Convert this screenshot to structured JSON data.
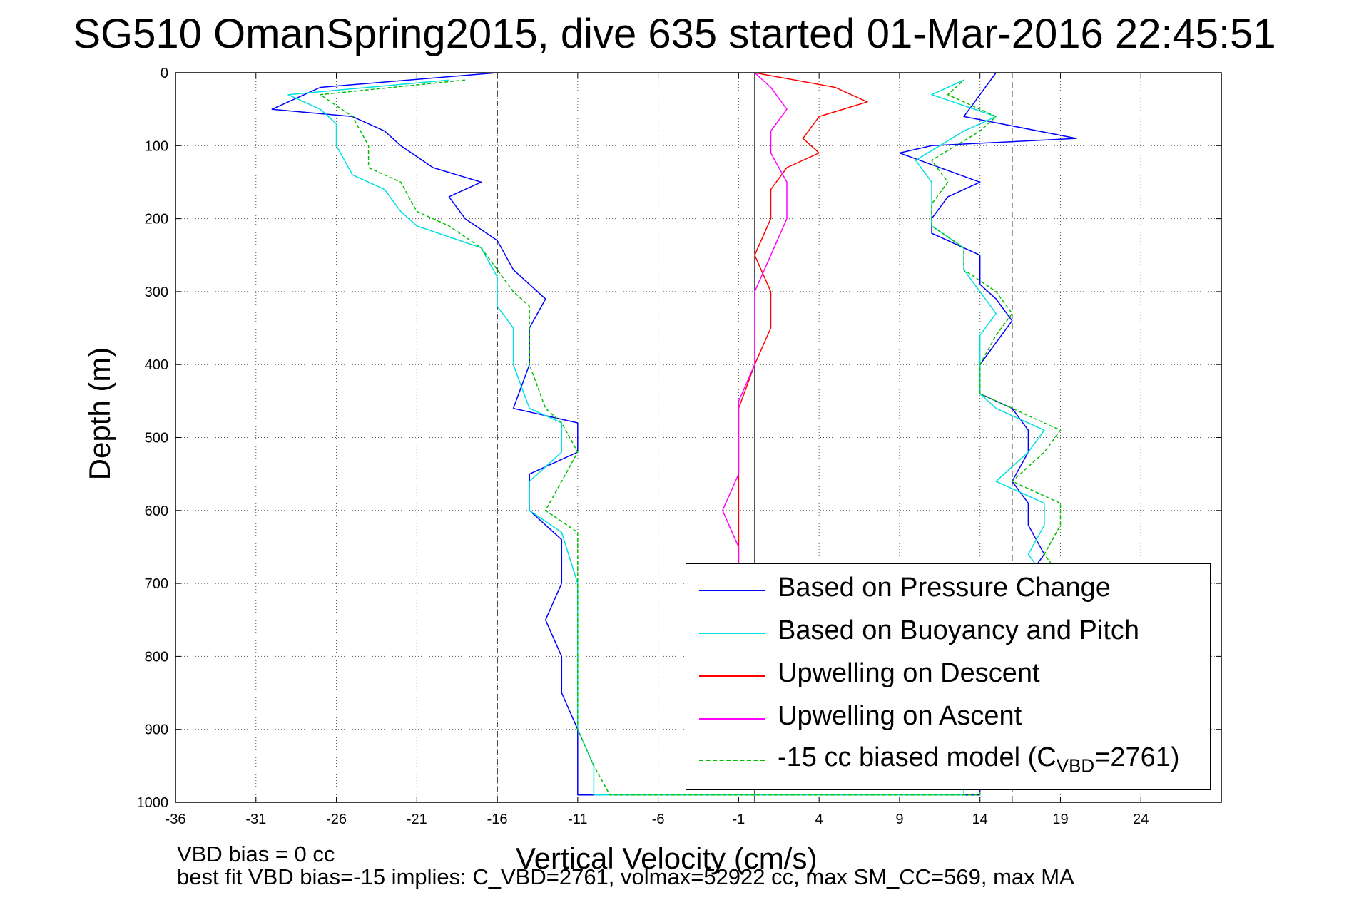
{
  "chart_data": {
    "type": "line",
    "title": "SG510 OmanSpring2015, dive 635 started 01-Mar-2016 22:45:51",
    "xlabel": "Vertical Velocity (cm/s)",
    "ylabel": "Depth (m)",
    "xlim": [
      -36,
      29
    ],
    "ylim": [
      1000,
      0
    ],
    "y_inverted": true,
    "grid": true,
    "x_ticks": [
      "-36",
      "-31",
      "-26",
      "-21",
      "-16",
      "-11",
      "-6",
      "-1",
      "4",
      "9",
      "14",
      "19",
      "24"
    ],
    "y_ticks": [
      "0",
      "100",
      "200",
      "300",
      "400",
      "500",
      "600",
      "700",
      "800",
      "900",
      "1000"
    ],
    "reference_lines": {
      "solid": [
        0
      ],
      "dashed": [
        -16,
        16
      ]
    },
    "legend_position": "bottom-right",
    "series": [
      {
        "name": "Based on Pressure Change",
        "color": "#0000ff",
        "style": "solid",
        "points": [
          [
            -16,
            0
          ],
          [
            -27,
            20
          ],
          [
            -30,
            50
          ],
          [
            -25,
            60
          ],
          [
            -23,
            80
          ],
          [
            -22,
            100
          ],
          [
            -20,
            130
          ],
          [
            -17,
            150
          ],
          [
            -19,
            170
          ],
          [
            -18,
            200
          ],
          [
            -16,
            230
          ],
          [
            -15,
            270
          ],
          [
            -13,
            310
          ],
          [
            -14,
            350
          ],
          [
            -14,
            400
          ],
          [
            -15,
            460
          ],
          [
            -11,
            480
          ],
          [
            -11,
            520
          ],
          [
            -14,
            550
          ],
          [
            -14,
            600
          ],
          [
            -12,
            640
          ],
          [
            -12,
            700
          ],
          [
            -13,
            750
          ],
          [
            -12,
            800
          ],
          [
            -12,
            850
          ],
          [
            -11,
            900
          ],
          [
            -11,
            950
          ],
          [
            -11,
            990
          ],
          [
            14,
            990
          ],
          [
            14,
            950
          ],
          [
            14,
            900
          ],
          [
            14,
            860
          ],
          [
            14,
            820
          ],
          [
            14,
            790
          ],
          [
            16,
            760
          ],
          [
            17,
            720
          ],
          [
            17,
            690
          ],
          [
            18,
            660
          ],
          [
            17,
            620
          ],
          [
            17,
            590
          ],
          [
            16,
            560
          ],
          [
            17,
            520
          ],
          [
            17,
            490
          ],
          [
            16,
            460
          ],
          [
            14,
            440
          ],
          [
            14,
            400
          ],
          [
            15,
            370
          ],
          [
            16,
            340
          ],
          [
            15,
            310
          ],
          [
            14,
            290
          ],
          [
            14,
            250
          ],
          [
            11,
            220
          ],
          [
            11,
            200
          ],
          [
            12,
            170
          ],
          [
            14,
            150
          ],
          [
            9,
            110
          ],
          [
            11,
            100
          ],
          [
            20,
            90
          ],
          [
            13,
            60
          ],
          [
            14,
            30
          ],
          [
            15,
            0
          ]
        ]
      },
      {
        "name": "Based on Buoyancy and Pitch",
        "color": "#00e0e0",
        "style": "solid",
        "points": [
          [
            -19,
            10
          ],
          [
            -29,
            30
          ],
          [
            -27,
            50
          ],
          [
            -26,
            70
          ],
          [
            -26,
            100
          ],
          [
            -25,
            140
          ],
          [
            -23,
            160
          ],
          [
            -22,
            190
          ],
          [
            -21,
            210
          ],
          [
            -17,
            240
          ],
          [
            -16,
            280
          ],
          [
            -16,
            320
          ],
          [
            -15,
            350
          ],
          [
            -15,
            400
          ],
          [
            -14,
            460
          ],
          [
            -12,
            480
          ],
          [
            -12,
            520
          ],
          [
            -14,
            560
          ],
          [
            -14,
            600
          ],
          [
            -12,
            630
          ],
          [
            -11,
            700
          ],
          [
            -11,
            800
          ],
          [
            -11,
            900
          ],
          [
            -10,
            950
          ],
          [
            -10,
            990
          ],
          [
            13,
            990
          ],
          [
            13,
            950
          ],
          [
            14,
            900
          ],
          [
            14,
            860
          ],
          [
            14,
            820
          ],
          [
            15,
            790
          ],
          [
            17,
            760
          ],
          [
            18,
            720
          ],
          [
            18,
            690
          ],
          [
            17,
            660
          ],
          [
            18,
            620
          ],
          [
            18,
            590
          ],
          [
            15,
            560
          ],
          [
            17,
            520
          ],
          [
            18,
            490
          ],
          [
            15,
            460
          ],
          [
            14,
            440
          ],
          [
            14,
            400
          ],
          [
            14,
            360
          ],
          [
            15,
            330
          ],
          [
            14,
            300
          ],
          [
            13,
            270
          ],
          [
            13,
            240
          ],
          [
            11,
            210
          ],
          [
            11,
            180
          ],
          [
            11,
            150
          ],
          [
            10,
            120
          ],
          [
            13,
            80
          ],
          [
            15,
            60
          ],
          [
            11,
            30
          ],
          [
            13,
            10
          ]
        ]
      },
      {
        "name": "Upwelling on Descent",
        "color": "#ff0000",
        "style": "solid",
        "points": [
          [
            0,
            0
          ],
          [
            5,
            20
          ],
          [
            7,
            40
          ],
          [
            4,
            60
          ],
          [
            3,
            90
          ],
          [
            4,
            110
          ],
          [
            2,
            130
          ],
          [
            1,
            160
          ],
          [
            1,
            200
          ],
          [
            0,
            250
          ],
          [
            1,
            300
          ],
          [
            1,
            350
          ],
          [
            0,
            400
          ],
          [
            -1,
            460
          ],
          [
            -1,
            500
          ],
          [
            -1,
            550
          ],
          [
            -1,
            600
          ],
          [
            -1,
            650
          ],
          [
            -1,
            700
          ]
        ]
      },
      {
        "name": "Upwelling on Ascent",
        "color": "#ff00ff",
        "style": "solid",
        "points": [
          [
            0,
            0
          ],
          [
            1,
            20
          ],
          [
            2,
            50
          ],
          [
            1,
            80
          ],
          [
            1,
            110
          ],
          [
            2,
            150
          ],
          [
            2,
            200
          ],
          [
            1,
            250
          ],
          [
            0,
            300
          ],
          [
            0,
            350
          ],
          [
            0,
            400
          ],
          [
            -1,
            450
          ],
          [
            -1,
            500
          ],
          [
            -1,
            550
          ],
          [
            -2,
            600
          ],
          [
            -1,
            650
          ],
          [
            -1,
            700
          ]
        ]
      },
      {
        "name": "-15 cc biased model (C_VBD=2761)",
        "color": "#00c000",
        "style": "dashed",
        "points": [
          [
            -18,
            10
          ],
          [
            -27,
            30
          ],
          [
            -25,
            60
          ],
          [
            -24,
            100
          ],
          [
            -24,
            130
          ],
          [
            -22,
            150
          ],
          [
            -21,
            190
          ],
          [
            -19,
            210
          ],
          [
            -17,
            240
          ],
          [
            -15,
            300
          ],
          [
            -14,
            320
          ],
          [
            -14,
            360
          ],
          [
            -14,
            400
          ],
          [
            -13,
            460
          ],
          [
            -12,
            480
          ],
          [
            -11,
            520
          ],
          [
            -12,
            560
          ],
          [
            -13,
            600
          ],
          [
            -11,
            630
          ],
          [
            -11,
            700
          ],
          [
            -11,
            800
          ],
          [
            -11,
            900
          ],
          [
            -10,
            950
          ],
          [
            -9,
            990
          ],
          [
            14,
            990
          ],
          [
            14,
            950
          ],
          [
            14,
            900
          ],
          [
            14,
            860
          ],
          [
            15,
            820
          ],
          [
            15,
            790
          ],
          [
            18,
            760
          ],
          [
            19,
            720
          ],
          [
            19,
            690
          ],
          [
            18,
            660
          ],
          [
            19,
            620
          ],
          [
            19,
            590
          ],
          [
            16,
            560
          ],
          [
            18,
            520
          ],
          [
            19,
            490
          ],
          [
            16,
            460
          ],
          [
            14,
            440
          ],
          [
            14,
            400
          ],
          [
            15,
            360
          ],
          [
            16,
            330
          ],
          [
            15,
            300
          ],
          [
            13,
            270
          ],
          [
            13,
            240
          ],
          [
            11,
            210
          ],
          [
            11,
            180
          ],
          [
            12,
            150
          ],
          [
            11,
            120
          ],
          [
            14,
            80
          ],
          [
            15,
            60
          ],
          [
            12,
            30
          ],
          [
            13,
            10
          ]
        ]
      }
    ]
  },
  "legend": {
    "entries": [
      {
        "label": "Based on Pressure Change",
        "color": "#0000ff",
        "dashed": false
      },
      {
        "label": "Based on Buoyancy and Pitch",
        "color": "#00e0e0",
        "dashed": false
      },
      {
        "label": "Upwelling on Descent",
        "color": "#ff0000",
        "dashed": false
      },
      {
        "label": "Upwelling on Ascent",
        "color": "#ff00ff",
        "dashed": false
      },
      {
        "label": "-15 cc biased model (CVBD=2761)",
        "color": "#00c000",
        "dashed": true
      }
    ]
  },
  "footnotes": {
    "line1": "VBD bias = 0 cc",
    "line2": "best fit VBD bias=-15 implies: C_VBD=2761, volmax=52922 cc, max SM_CC=569, max MA"
  }
}
